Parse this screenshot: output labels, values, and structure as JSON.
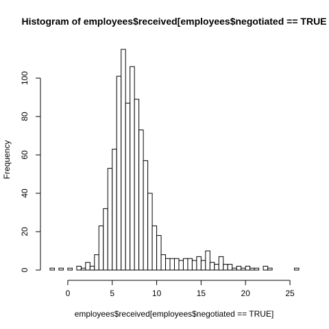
{
  "chart_data": {
    "type": "bar",
    "title": "Histogram of employees$received[employees$negotiated == TRUE",
    "xlabel": "employees$received[employees$negotiated == TRUE]",
    "ylabel": "Frequency",
    "bin_width": 0.5,
    "bin_starts": [
      -2,
      -1.5,
      -1,
      -0.5,
      0,
      0.5,
      1,
      1.5,
      2,
      2.5,
      3,
      3.5,
      4,
      4.5,
      5,
      5.5,
      6,
      6.5,
      7,
      7.5,
      8,
      8.5,
      9,
      9.5,
      10,
      10.5,
      11,
      11.5,
      12,
      12.5,
      13,
      13.5,
      14,
      14.5,
      15,
      15.5,
      16,
      16.5,
      17,
      17.5,
      18,
      18.5,
      19,
      19.5,
      20,
      20.5,
      21,
      21.5,
      22,
      22.5,
      23,
      23.5,
      24,
      24.5,
      25,
      25.5
    ],
    "values": [
      1,
      0,
      1,
      0,
      1,
      0,
      2,
      1,
      4,
      2,
      8,
      23,
      32,
      53,
      63,
      101,
      115,
      87,
      106,
      89,
      73,
      57,
      40,
      23,
      18,
      8,
      6,
      6,
      6,
      5,
      6,
      6,
      5,
      7,
      5,
      10,
      4,
      3,
      7,
      3,
      3,
      1,
      2,
      1,
      2,
      1,
      1,
      0,
      2,
      1,
      0,
      0,
      0,
      0,
      0,
      1
    ],
    "xlim": [
      -2,
      26
    ],
    "ylim": [
      0,
      115
    ],
    "x_ticks": [
      0,
      5,
      10,
      15,
      20,
      25
    ],
    "y_ticks": [
      0,
      20,
      40,
      60,
      80,
      100
    ],
    "grid": false,
    "bar_fill": "#ffffff",
    "bar_stroke": "#000000"
  }
}
